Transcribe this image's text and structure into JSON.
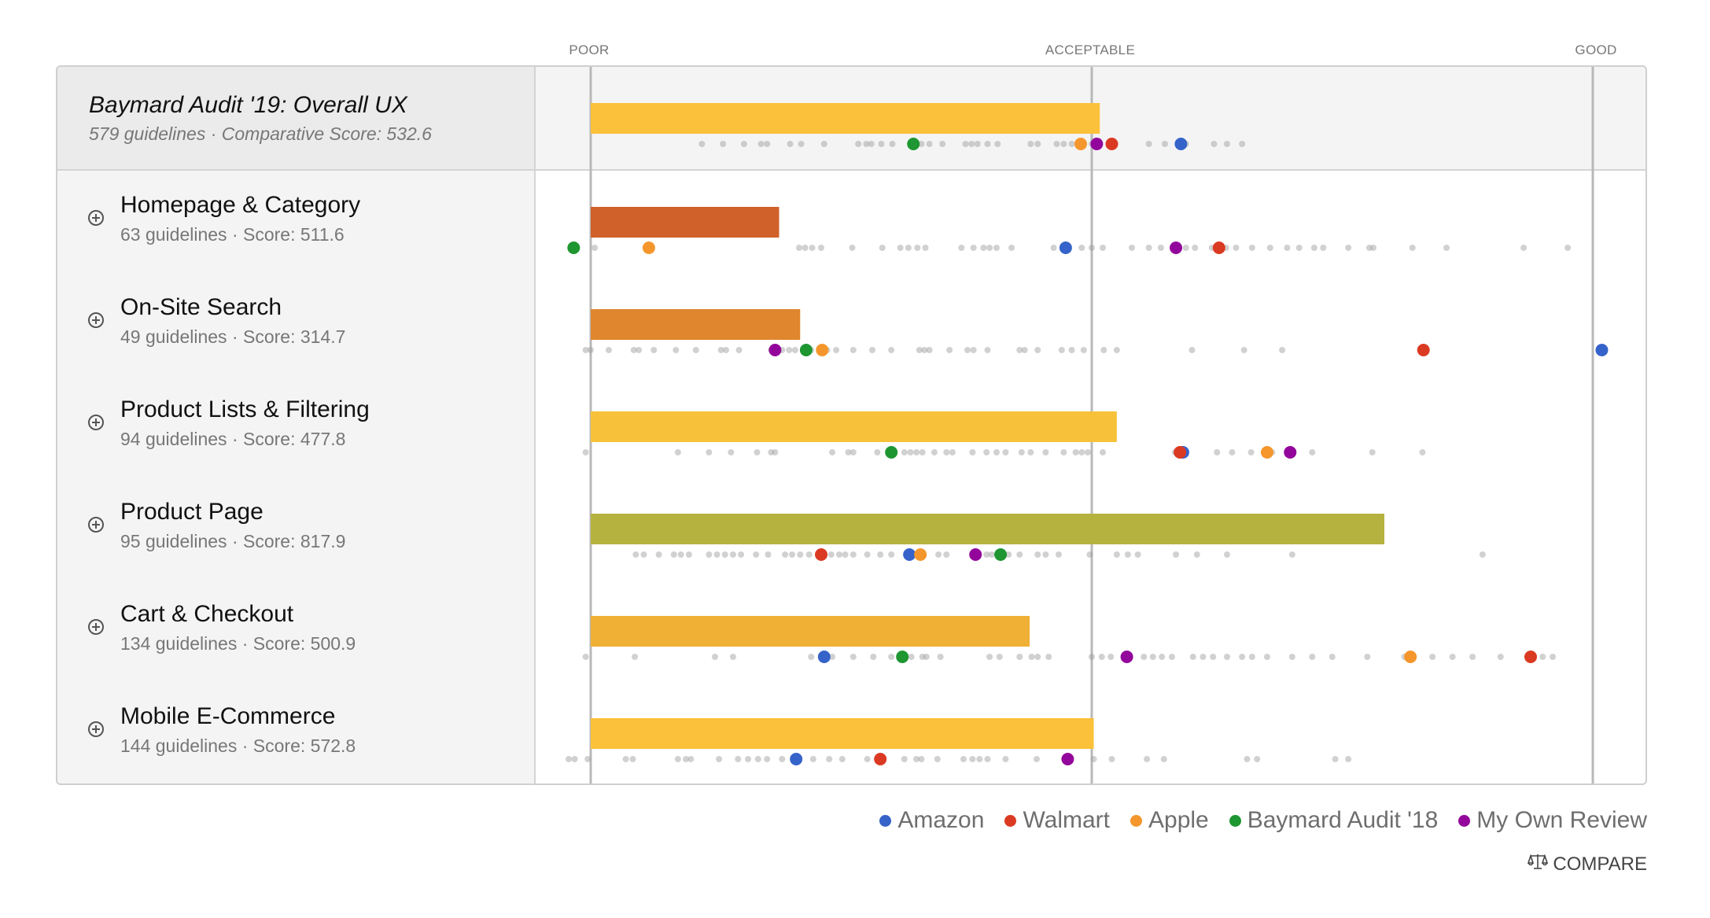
{
  "scale": {
    "labels": [
      {
        "label": "POOR",
        "value": 0
      },
      {
        "label": "ACCEPTABLE",
        "value": 0.5
      },
      {
        "label": "GOOD",
        "value": 1
      }
    ]
  },
  "series": [
    {
      "key": "amazon",
      "name": "Amazon",
      "color": "#3563c9"
    },
    {
      "key": "walmart",
      "name": "Walmart",
      "color": "#db3a22"
    },
    {
      "key": "apple",
      "name": "Apple",
      "color": "#f5962c"
    },
    {
      "key": "baymard18",
      "name": "Baymard Audit '18",
      "color": "#1e9631"
    },
    {
      "key": "own",
      "name": "My Own Review",
      "color": "#93069b"
    }
  ],
  "overall": {
    "title": "Baymard Audit '19: Overall UX",
    "subtitle": "579 guidelines · Comparative Score: 532.6"
  },
  "categories": [
    {
      "title": "Homepage & Category",
      "subtitle": "63 guidelines · Score: 511.6"
    },
    {
      "title": "On-Site Search",
      "subtitle": "49 guidelines · Score: 314.7"
    },
    {
      "title": "Product Lists & Filtering",
      "subtitle": "94 guidelines · Score: 477.8"
    },
    {
      "title": "Product Page",
      "subtitle": "95 guidelines · Score: 817.9"
    },
    {
      "title": "Cart & Checkout",
      "subtitle": "134 guidelines · Score: 500.9"
    },
    {
      "title": "Mobile E-Commerce",
      "subtitle": "144 guidelines · Score: 572.8"
    }
  ],
  "compare_label": "COMPARE",
  "chart_data": {
    "type": "bar",
    "title": "Baymard Audit '19: Overall UX",
    "xlabel": "",
    "ylabel": "",
    "xlim": [
      0,
      1
    ],
    "x_tick_labels": [
      "POOR",
      "ACCEPTABLE",
      "GOOD"
    ],
    "legend_position": "bottom-right",
    "categories": [
      "Overall UX",
      "Homepage & Category",
      "On-Site Search",
      "Product Lists & Filtering",
      "Product Page",
      "Cart & Checkout",
      "Mobile E-Commerce"
    ],
    "bar_colors": [
      "#fbc13a",
      "#d0612a",
      "#e0862e",
      "#f7c23a",
      "#b5b23f",
      "#f0b035",
      "#fbc13a"
    ],
    "values": [
      0.508,
      0.188,
      0.209,
      0.525,
      0.792,
      0.438,
      0.502
    ],
    "scores": [
      532.6,
      511.6,
      314.7,
      477.8,
      817.9,
      500.9,
      572.8
    ],
    "guidelines": [
      579,
      63,
      49,
      94,
      95,
      134,
      144
    ],
    "markers": [
      {
        "amazon": 0.589,
        "walmart": 0.52,
        "apple": 0.489,
        "baymard18": 0.322,
        "own": 0.505
      },
      {
        "amazon": 0.474,
        "walmart": 0.627,
        "apple": 0.058,
        "baymard18": -0.017,
        "own": 0.584
      },
      {
        "amazon": 1.009,
        "walmart": 0.831,
        "apple": 0.231,
        "baymard18": 0.215,
        "own": 0.184
      },
      {
        "amazon": 0.591,
        "walmart": 0.588,
        "apple": 0.675,
        "baymard18": 0.3,
        "own": 0.698
      },
      {
        "amazon": 0.318,
        "walmart": 0.23,
        "apple": 0.329,
        "baymard18": 0.409,
        "own": 0.384
      },
      {
        "amazon": 0.233,
        "walmart": 0.938,
        "apple": 0.818,
        "baymard18": 0.311,
        "own": 0.535
      },
      {
        "amazon": 0.205,
        "walmart": 0.289,
        "apple": null,
        "baymard18": null,
        "own": 0.476
      }
    ],
    "guideline_dots": [
      [
        0.111,
        0.132,
        0.153,
        0.17,
        0.176,
        0.199,
        0.21,
        0.233,
        0.267,
        0.275,
        0.28,
        0.29,
        0.301,
        0.33,
        0.338,
        0.351,
        0.374,
        0.38,
        0.386,
        0.396,
        0.406,
        0.439,
        0.446,
        0.465,
        0.472,
        0.48,
        0.5,
        0.557,
        0.573,
        0.594,
        0.622,
        0.635,
        0.65
      ],
      [
        0.004,
        0.208,
        0.214,
        0.221,
        0.23,
        0.261,
        0.291,
        0.309,
        0.317,
        0.326,
        0.334,
        0.37,
        0.382,
        0.392,
        0.398,
        0.405,
        0.42,
        0.462,
        0.49,
        0.5,
        0.511,
        0.54,
        0.557,
        0.569,
        0.594,
        0.603,
        0.62,
        0.634,
        0.644,
        0.66,
        0.678,
        0.695,
        0.707,
        0.722,
        0.731,
        0.756,
        0.777,
        0.781,
        0.82,
        0.854,
        0.931,
        0.975
      ],
      [
        -0.005,
        0.0,
        0.018,
        0.043,
        0.048,
        0.063,
        0.085,
        0.105,
        0.13,
        0.135,
        0.148,
        0.18,
        0.191,
        0.198,
        0.204,
        0.22,
        0.236,
        0.245,
        0.262,
        0.281,
        0.3,
        0.328,
        0.333,
        0.338,
        0.358,
        0.376,
        0.382,
        0.396,
        0.428,
        0.433,
        0.446,
        0.47,
        0.48,
        0.492,
        0.512,
        0.525,
        0.6,
        0.652,
        0.69
      ],
      [
        -0.005,
        0.087,
        0.118,
        0.14,
        0.166,
        0.18,
        0.184,
        0.241,
        0.257,
        0.262,
        0.286,
        0.313,
        0.319,
        0.325,
        0.331,
        0.343,
        0.355,
        0.361,
        0.381,
        0.395,
        0.405,
        0.414,
        0.43,
        0.439,
        0.454,
        0.472,
        0.484,
        0.49,
        0.496,
        0.511,
        0.583,
        0.625,
        0.64,
        0.659,
        0.68,
        0.72,
        0.78,
        0.83
      ],
      [
        0.045,
        0.053,
        0.068,
        0.083,
        0.09,
        0.098,
        0.118,
        0.126,
        0.134,
        0.142,
        0.15,
        0.165,
        0.177,
        0.194,
        0.201,
        0.209,
        0.218,
        0.24,
        0.248,
        0.254,
        0.262,
        0.276,
        0.289,
        0.3,
        0.347,
        0.355,
        0.395,
        0.4,
        0.417,
        0.428,
        0.446,
        0.454,
        0.467,
        0.498,
        0.525,
        0.536,
        0.546,
        0.584,
        0.605,
        0.635,
        0.7,
        0.89
      ],
      [
        -0.005,
        0.044,
        0.124,
        0.142,
        0.241,
        0.22,
        0.262,
        0.282,
        0.3,
        0.32,
        0.331,
        0.335,
        0.349,
        0.398,
        0.408,
        0.428,
        0.44,
        0.446,
        0.457,
        0.5,
        0.51,
        0.519,
        0.552,
        0.561,
        0.57,
        0.58,
        0.601,
        0.611,
        0.621,
        0.635,
        0.65,
        0.66,
        0.675,
        0.7,
        0.72,
        0.74,
        0.775,
        0.812,
        0.84,
        0.86,
        0.88,
        0.908,
        0.94,
        0.95,
        0.96
      ],
      [
        -0.022,
        -0.016,
        -0.003,
        0.035,
        0.042,
        0.087,
        0.095,
        0.1,
        0.128,
        0.147,
        0.157,
        0.167,
        0.176,
        0.191,
        0.222,
        0.238,
        0.251,
        0.276,
        0.286,
        0.313,
        0.325,
        0.33,
        0.346,
        0.372,
        0.381,
        0.388,
        0.396,
        0.414,
        0.445,
        0.502,
        0.52,
        0.555,
        0.572,
        0.655,
        0.665,
        0.743,
        0.756
      ]
    ]
  }
}
